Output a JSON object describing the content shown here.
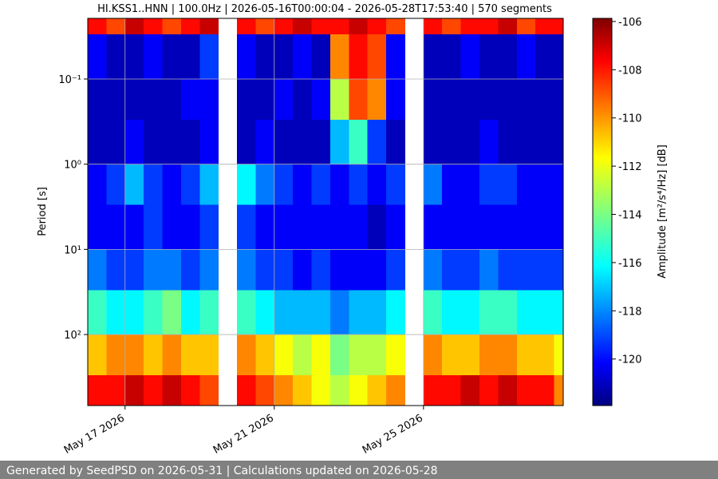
{
  "chart_data": {
    "type": "heatmap",
    "title": "HI.KSS1..HNN | 100.0Hz | 2026-05-16T00:00:04 - 2026-05-28T17:53:40 | 570 segments",
    "ylabel": "Period [s]",
    "colorbar_label": "Amplitude [m²/s⁴/Hz] [dB]",
    "footer": "Generated by SeedPSD on 2026-05-31 | Calculations updated on 2026-05-28",
    "colormap": "jet",
    "yscale": "log",
    "yinverted": true,
    "grid": true,
    "xlim": [
      "2026-05-16T00:00:04",
      "2026-05-28T17:53:40"
    ],
    "xticks": [
      {
        "value": "2026-05-17",
        "label": "May 17 2026"
      },
      {
        "value": "2026-05-21",
        "label": "May 21 2026"
      },
      {
        "value": "2026-05-25",
        "label": "May 25 2026"
      }
    ],
    "ylim": [
      0.0194,
      682
    ],
    "yticks": [
      {
        "value": 0.1,
        "label": "10⁻¹"
      },
      {
        "value": 1,
        "label": "10⁰"
      },
      {
        "value": 10,
        "label": "10¹"
      },
      {
        "value": 100,
        "label": "10²"
      }
    ],
    "clim": [
      -121.93,
      -105.87
    ],
    "cticks": [
      -106,
      -108,
      -110,
      -112,
      -114,
      -116,
      -118,
      -120
    ],
    "x": [
      "2026-05-16T00:00",
      "2026-05-16T12:00",
      "2026-05-17T00:00",
      "2026-05-17T12:00",
      "2026-05-18T00:00",
      "2026-05-18T12:00",
      "2026-05-19T00:00",
      "2026-05-19T12:00",
      "2026-05-20T00:00",
      "2026-05-20T12:00",
      "2026-05-21T00:00",
      "2026-05-21T12:00",
      "2026-05-22T00:00",
      "2026-05-22T12:00",
      "2026-05-23T00:00",
      "2026-05-23T12:00",
      "2026-05-24T00:00",
      "2026-05-24T12:00",
      "2026-05-25T00:00",
      "2026-05-25T12:00",
      "2026-05-26T00:00",
      "2026-05-26T12:00",
      "2026-05-27T00:00",
      "2026-05-27T12:00",
      "2026-05-28T00:00",
      "2026-05-28T12:00"
    ],
    "x_step_hours": 12,
    "y_edges": [
      0.0194,
      0.03,
      0.1,
      0.3,
      1,
      3,
      10,
      30,
      100,
      300,
      682
    ],
    "z": [
      [
        -108,
        -109,
        -107,
        -108,
        -109,
        -108,
        -107,
        null,
        -108,
        -109,
        -108,
        -107,
        -108,
        -108,
        -107,
        -108,
        -109,
        null,
        -108,
        -109,
        -108,
        -108,
        -107,
        -109,
        -108,
        -108
      ],
      [
        -120,
        -121,
        -121,
        -120,
        -121,
        -121,
        -119,
        null,
        -120,
        -121,
        -121,
        -120,
        -121,
        -110,
        -108,
        -109,
        -120,
        null,
        -121,
        -121,
        -120,
        -121,
        -121,
        -120,
        -121,
        -121
      ],
      [
        -121,
        -121,
        -121,
        -121,
        -121,
        -120,
        -120,
        null,
        -121,
        -121,
        -120,
        -121,
        -120,
        -113,
        -109,
        -110,
        -120,
        null,
        -121,
        -121,
        -121,
        -121,
        -121,
        -121,
        -121,
        -121
      ],
      [
        -121,
        -121,
        -120,
        -121,
        -121,
        -121,
        -120,
        null,
        -121,
        -120,
        -121,
        -121,
        -121,
        -117,
        -115,
        -119,
        -121,
        null,
        -121,
        -121,
        -121,
        -120,
        -121,
        -121,
        -121,
        -121
      ],
      [
        -120,
        -119,
        -117,
        -119,
        -120,
        -119,
        -117,
        null,
        -116,
        -118,
        -119,
        -120,
        -119,
        -120,
        -119,
        -120,
        -119,
        null,
        -118,
        -120,
        -120,
        -119,
        -119,
        -120,
        -120,
        -120
      ],
      [
        -120,
        -120,
        -120,
        -119,
        -120,
        -120,
        -119,
        null,
        -119,
        -120,
        -120,
        -120,
        -120,
        -120,
        -120,
        -121,
        -120,
        null,
        -120,
        -120,
        -120,
        -120,
        -120,
        -120,
        -120,
        -120
      ],
      [
        -118,
        -119,
        -119,
        -118,
        -118,
        -119,
        -118,
        null,
        -118,
        -119,
        -119,
        -120,
        -119,
        -120,
        -120,
        -120,
        -119,
        null,
        -118,
        -119,
        -119,
        -118,
        -119,
        -119,
        -119,
        -119
      ],
      [
        -115,
        -116,
        -116,
        -115,
        -114,
        -116,
        -115,
        null,
        -115,
        -116,
        -117,
        -117,
        -117,
        -118,
        -117,
        -117,
        -116,
        null,
        -115,
        -116,
        -116,
        -115,
        -115,
        -116,
        -116,
        -116
      ],
      [
        -111,
        -110,
        -110,
        -111,
        -110,
        -111,
        -111,
        null,
        -110,
        -111,
        -112,
        -113,
        -112,
        -114,
        -113,
        -113,
        -112,
        null,
        -110,
        -111,
        -111,
        -110,
        -110,
        -111,
        -111,
        -112
      ],
      [
        -108,
        -108,
        -107,
        -108,
        -107,
        -108,
        -109,
        null,
        -108,
        -109,
        -110,
        -111,
        -112,
        -113,
        -112,
        -111,
        -110,
        null,
        -108,
        -108,
        -107,
        -108,
        -107,
        -108,
        -108,
        -110
      ]
    ]
  }
}
